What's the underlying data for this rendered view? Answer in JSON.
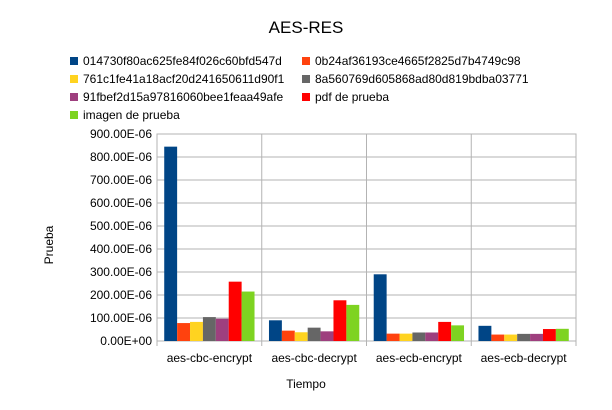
{
  "chart_data": {
    "type": "bar",
    "title": "AES-RES",
    "xlabel": "Tiempo",
    "ylabel": "Prueba",
    "categories": [
      "aes-cbc-encrypt",
      "aes-cbc-decrypt",
      "aes-ecb-encrypt",
      "aes-ecb-decrypt"
    ],
    "ylim": [
      0,
      0.0009
    ],
    "yticks": [
      "0.00E+00",
      "100.00E-06",
      "200.00E-06",
      "300.00E-06",
      "400.00E-06",
      "500.00E-06",
      "600.00E-06",
      "700.00E-06",
      "800.00E-06",
      "900.00E-06"
    ],
    "grid": true,
    "legend_position": "top",
    "series": [
      {
        "name": "014730f80ac625fe84f026c60bfd547d",
        "color": "#004586",
        "values": [
          0.000845,
          9e-05,
          0.00029,
          6.6e-05
        ]
      },
      {
        "name": "0b24af36193ce4665f2825d7b4749c98",
        "color": "#ff420e",
        "values": [
          7.8e-05,
          4.5e-05,
          3.2e-05,
          2.8e-05
        ]
      },
      {
        "name": "761c1fe41a18acf20d241650611d90f1",
        "color": "#ffd320",
        "values": [
          8.3e-05,
          3.8e-05,
          3.2e-05,
          2.8e-05
        ]
      },
      {
        "name": "8a560769d605868ad80d819bdba03771",
        "color": "#666666",
        "values": [
          0.000104,
          5.8e-05,
          3.7e-05,
          3.1e-05
        ]
      },
      {
        "name": "91fbef2d15a97816060bee1feaa49afe",
        "color": "#9e3f7e",
        "values": [
          9.7e-05,
          4.2e-05,
          3.7e-05,
          3.1e-05
        ]
      },
      {
        "name": "pdf de prueba",
        "color": "#ff0000",
        "values": [
          0.000258,
          0.000177,
          8.3e-05,
          5.2e-05
        ]
      },
      {
        "name": "imagen de prueba",
        "color": "#7ed321",
        "values": [
          0.000215,
          0.000157,
          6.8e-05,
          5.3e-05
        ]
      }
    ]
  }
}
